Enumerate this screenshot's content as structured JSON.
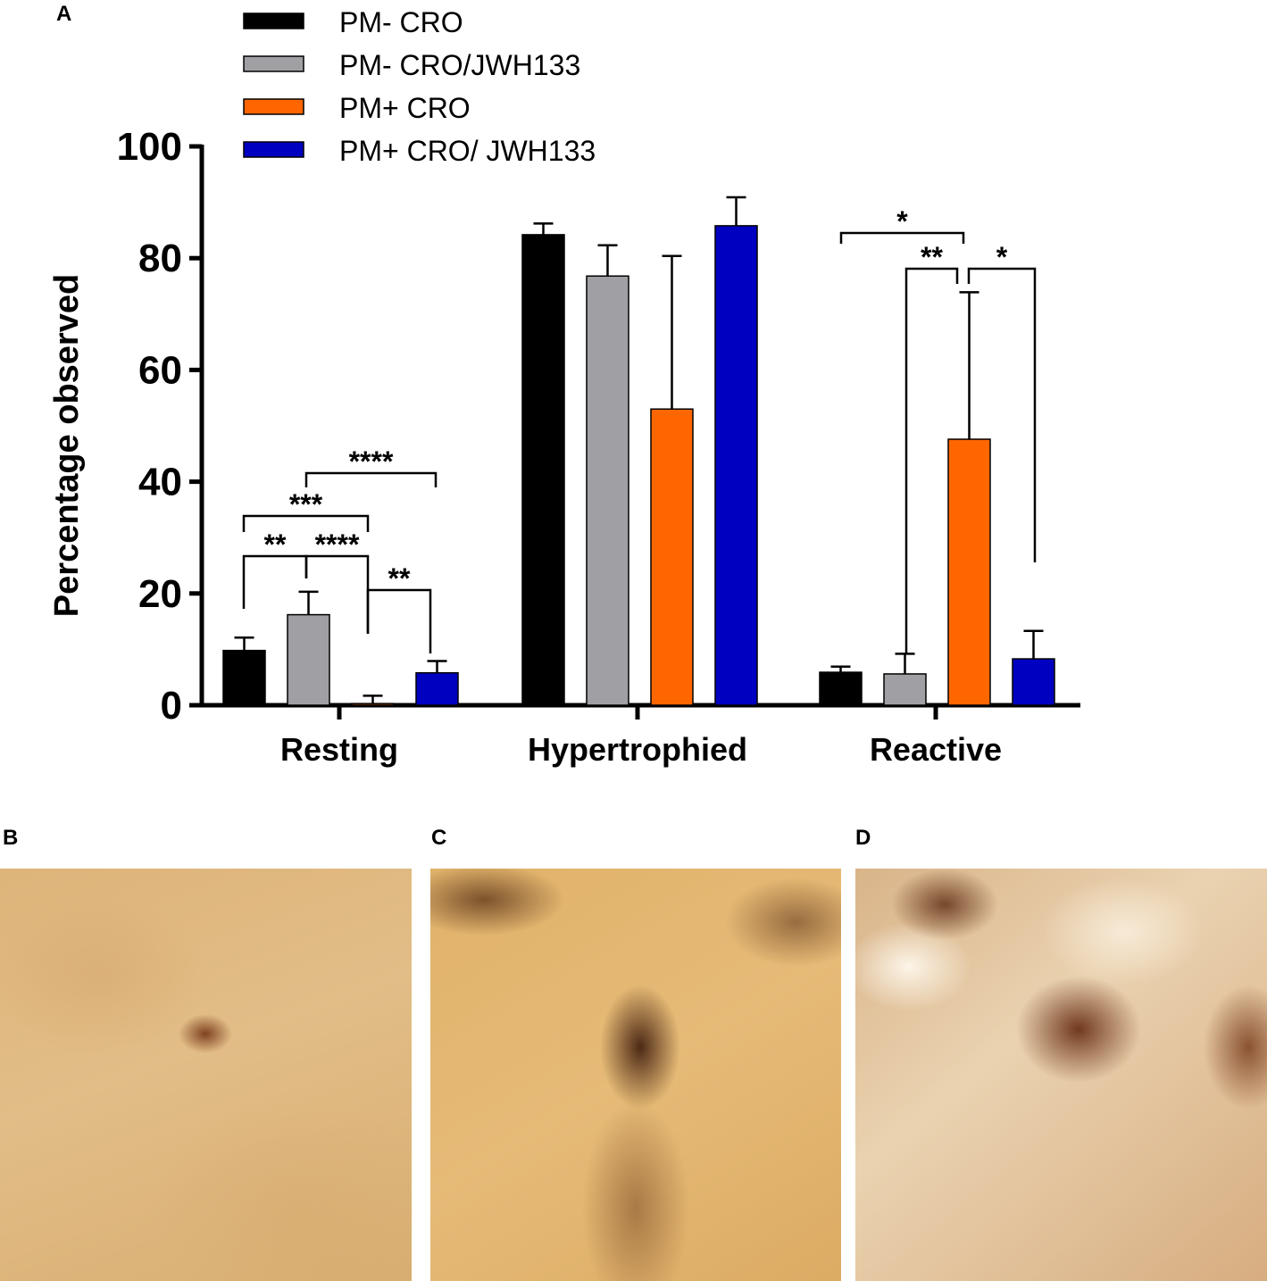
{
  "panels": {
    "a": "A",
    "b": "B",
    "c": "C",
    "d": "D"
  },
  "colors": {
    "pm_minus_cro": "#000000",
    "pm_minus_cro_jwh133": "#a0a0a4",
    "pm_plus_cro": "#ff6600",
    "pm_plus_cro_jwh133": "#0000c0"
  },
  "chart_data": {
    "type": "bar",
    "ylabel": "Percentage observed",
    "xlabel": "",
    "ylim": [
      0,
      100
    ],
    "yticks": [
      "0",
      "20",
      "40",
      "60",
      "80",
      "100"
    ],
    "categories": [
      "Resting",
      "Hypertrophied",
      "Reactive"
    ],
    "legend_position": "top",
    "series": [
      {
        "name": "PM- CRO",
        "color": "#000000",
        "values": [
          9.8,
          84.2,
          5.9
        ],
        "errors": [
          2.3,
          2.0,
          1.0
        ]
      },
      {
        "name": "PM- CRO/JWH133",
        "color": "#a0a0a4",
        "values": [
          16.2,
          76.8,
          5.6
        ],
        "errors": [
          4.1,
          5.5,
          3.6
        ]
      },
      {
        "name": "PM+ CRO",
        "color": "#ff6600",
        "values": [
          0.3,
          53.0,
          47.6
        ],
        "errors": [
          1.4,
          27.4,
          26.3
        ]
      },
      {
        "name": "PM+ CRO/ JWH133",
        "color": "#0000c0",
        "values": [
          5.8,
          85.8,
          8.3
        ],
        "errors": [
          2.1,
          5.1,
          5.0
        ]
      }
    ],
    "significance": [
      {
        "label": "**",
        "category": "Resting",
        "between": [
          "PM- CRO",
          "PM- CRO/JWH133"
        ]
      },
      {
        "label": "****",
        "category": "Resting",
        "between": [
          "PM- CRO/JWH133",
          "PM+ CRO"
        ]
      },
      {
        "label": "**",
        "category": "Resting",
        "between": [
          "PM+ CRO",
          "PM+ CRO/ JWH133"
        ]
      },
      {
        "label": "***",
        "category": "Resting",
        "between": [
          "PM- CRO",
          "PM+ CRO"
        ]
      },
      {
        "label": "****",
        "category": "Resting",
        "between": [
          "PM- CRO/JWH133",
          "PM+ CRO/ JWH133"
        ]
      },
      {
        "label": "*",
        "category": "Reactive",
        "between": [
          "PM- CRO",
          "PM+ CRO"
        ]
      },
      {
        "label": "**",
        "category": "Reactive",
        "between": [
          "PM- CRO/JWH133",
          "PM+ CRO"
        ]
      },
      {
        "label": "*",
        "category": "Reactive",
        "between": [
          "PM+ CRO",
          "PM+ CRO/ JWH133"
        ]
      }
    ]
  }
}
